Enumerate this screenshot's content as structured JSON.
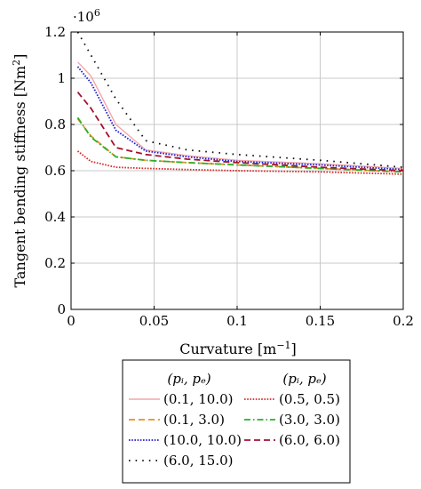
{
  "chart_data": {
    "type": "line",
    "xlabel": "Curvature [m",
    "xlabel_sup": "−1",
    "xlabel_end": "]",
    "ylabel": "Tangent bending stiffness [Nm",
    "ylabel_sup": "2",
    "ylabel_end": "]",
    "y_multiplier": "·10",
    "y_multiplier_exp": "6",
    "xlim": [
      0,
      0.2
    ],
    "ylim": [
      0,
      1.2
    ],
    "x_ticks": [
      0,
      0.05,
      0.1,
      0.15,
      0.2
    ],
    "x_tick_labels": [
      "0",
      "0.05",
      "0.1",
      "0.15",
      "0.2"
    ],
    "y_ticks": [
      0,
      0.2,
      0.4,
      0.6,
      0.8,
      1.0,
      1.2
    ],
    "y_tick_labels": [
      "0",
      "0.2",
      "0.4",
      "0.6",
      "0.8",
      "1",
      "1.2"
    ],
    "grid": true,
    "legend_placement": "below",
    "legend_header_left": "(pᵢ, pₑ)",
    "legend_header_right": "(pᵢ, pₑ)",
    "series": [
      {
        "name": "(0.1, 10.0)",
        "color": "#f4a6a8",
        "dash": "solid",
        "x": [
          0.004,
          0.012,
          0.027,
          0.045,
          0.07,
          0.1,
          0.15,
          0.2
        ],
        "y": [
          1.07,
          1.01,
          0.8,
          0.69,
          0.665,
          0.645,
          0.63,
          0.61
        ]
      },
      {
        "name": "(0.5, 0.5)",
        "color": "#d62728",
        "dash": "dot",
        "x": [
          0.004,
          0.012,
          0.027,
          0.045,
          0.07,
          0.1,
          0.15,
          0.2
        ],
        "y": [
          0.685,
          0.64,
          0.615,
          0.61,
          0.605,
          0.6,
          0.595,
          0.585
        ]
      },
      {
        "name": "(0.1, 3.0)",
        "color": "#e8901e",
        "dash": "dash",
        "x": [
          0.004,
          0.012,
          0.027,
          0.045,
          0.07,
          0.1,
          0.15,
          0.2
        ],
        "y": [
          0.825,
          0.75,
          0.66,
          0.645,
          0.635,
          0.625,
          0.61,
          0.595
        ]
      },
      {
        "name": "(3.0, 3.0)",
        "color": "#2ab02a",
        "dash": "dashdot",
        "x": [
          0.004,
          0.012,
          0.027,
          0.045,
          0.07,
          0.1,
          0.15,
          0.2
        ],
        "y": [
          0.83,
          0.745,
          0.66,
          0.645,
          0.635,
          0.625,
          0.61,
          0.595
        ]
      },
      {
        "name": "(10.0, 10.0)",
        "color": "#1f1fd6",
        "dash": "dot",
        "x": [
          0.004,
          0.012,
          0.027,
          0.045,
          0.07,
          0.1,
          0.15,
          0.2
        ],
        "y": [
          1.05,
          0.98,
          0.775,
          0.685,
          0.66,
          0.64,
          0.625,
          0.605
        ]
      },
      {
        "name": "(6.0, 6.0)",
        "color": "#a3112f",
        "dash": "dash",
        "x": [
          0.004,
          0.012,
          0.027,
          0.045,
          0.07,
          0.1,
          0.15,
          0.2
        ],
        "y": [
          0.94,
          0.87,
          0.7,
          0.67,
          0.65,
          0.635,
          0.615,
          0.6
        ]
      },
      {
        "name": "(6.0, 15.0)",
        "color": "#111111",
        "dash": "sparse",
        "x": [
          0.004,
          0.012,
          0.027,
          0.045,
          0.07,
          0.1,
          0.15,
          0.2
        ],
        "y": [
          1.2,
          1.1,
          0.91,
          0.73,
          0.69,
          0.67,
          0.645,
          0.615
        ]
      }
    ]
  }
}
